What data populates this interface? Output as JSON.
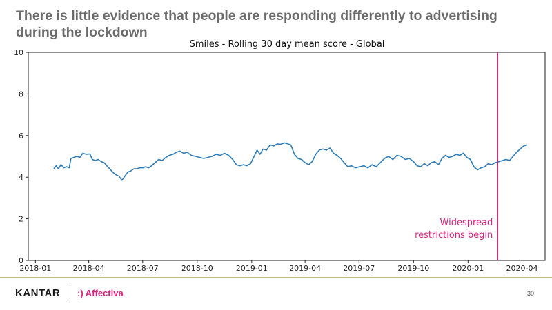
{
  "slide": {
    "headline": "There is little evidence that people are responding differently to advertising during the lockdown",
    "page_number": "30"
  },
  "footer": {
    "brand": "KANTAR",
    "partner": ":) Affectiva",
    "partner_color": "#d6247f"
  },
  "chart_data": {
    "type": "line",
    "title": "Smiles - Rolling 30 day mean score - Global",
    "xlabel": "",
    "ylabel": "",
    "x_range": [
      "2017-12-20",
      "2020-05-10"
    ],
    "ylim": [
      0,
      10
    ],
    "y_ticks": [
      0,
      2,
      4,
      6,
      8,
      10
    ],
    "x_ticks": [
      "2018-01",
      "2018-04",
      "2018-07",
      "2018-10",
      "2019-01",
      "2019-04",
      "2019-07",
      "2019-10",
      "2020-01",
      "2020-04"
    ],
    "grid": false,
    "series": [
      {
        "name": "Smiles",
        "color": "#2d7bb6",
        "points": [
          [
            "2018-02-01",
            4.4
          ],
          [
            "2018-02-05",
            4.55
          ],
          [
            "2018-02-09",
            4.4
          ],
          [
            "2018-02-13",
            4.6
          ],
          [
            "2018-02-18",
            4.45
          ],
          [
            "2018-02-23",
            4.5
          ],
          [
            "2018-02-27",
            4.45
          ],
          [
            "2018-03-02",
            4.9
          ],
          [
            "2018-03-07",
            4.95
          ],
          [
            "2018-03-12",
            5.0
          ],
          [
            "2018-03-17",
            4.95
          ],
          [
            "2018-03-22",
            5.15
          ],
          [
            "2018-03-28",
            5.1
          ],
          [
            "2018-04-03",
            5.12
          ],
          [
            "2018-04-07",
            4.85
          ],
          [
            "2018-04-12",
            4.8
          ],
          [
            "2018-04-17",
            4.85
          ],
          [
            "2018-04-22",
            4.75
          ],
          [
            "2018-04-27",
            4.7
          ],
          [
            "2018-05-03",
            4.5
          ],
          [
            "2018-05-08",
            4.35
          ],
          [
            "2018-05-13",
            4.2
          ],
          [
            "2018-05-18",
            4.1
          ],
          [
            "2018-05-22",
            4.05
          ],
          [
            "2018-05-27",
            3.85
          ],
          [
            "2018-06-01",
            4.05
          ],
          [
            "2018-06-06",
            4.25
          ],
          [
            "2018-06-11",
            4.3
          ],
          [
            "2018-06-16",
            4.4
          ],
          [
            "2018-06-21",
            4.4
          ],
          [
            "2018-06-26",
            4.45
          ],
          [
            "2018-07-01",
            4.45
          ],
          [
            "2018-07-06",
            4.5
          ],
          [
            "2018-07-11",
            4.45
          ],
          [
            "2018-07-16",
            4.55
          ],
          [
            "2018-07-22",
            4.7
          ],
          [
            "2018-07-28",
            4.85
          ],
          [
            "2018-08-03",
            4.8
          ],
          [
            "2018-08-09",
            4.95
          ],
          [
            "2018-08-15",
            5.05
          ],
          [
            "2018-08-21",
            5.1
          ],
          [
            "2018-08-27",
            5.2
          ],
          [
            "2018-09-02",
            5.25
          ],
          [
            "2018-09-08",
            5.15
          ],
          [
            "2018-09-14",
            5.2
          ],
          [
            "2018-09-21",
            5.05
          ],
          [
            "2018-09-28",
            5.0
          ],
          [
            "2018-10-05",
            4.95
          ],
          [
            "2018-10-12",
            4.9
          ],
          [
            "2018-10-19",
            4.95
          ],
          [
            "2018-10-26",
            5.0
          ],
          [
            "2018-11-02",
            5.1
          ],
          [
            "2018-11-09",
            5.05
          ],
          [
            "2018-11-16",
            5.15
          ],
          [
            "2018-11-23",
            5.05
          ],
          [
            "2018-11-30",
            4.85
          ],
          [
            "2018-12-06",
            4.6
          ],
          [
            "2018-12-12",
            4.55
          ],
          [
            "2018-12-18",
            4.6
          ],
          [
            "2018-12-24",
            4.55
          ],
          [
            "2018-12-30",
            4.65
          ],
          [
            "2019-01-05",
            5.0
          ],
          [
            "2019-01-10",
            5.3
          ],
          [
            "2019-01-15",
            5.1
          ],
          [
            "2019-01-20",
            5.35
          ],
          [
            "2019-01-26",
            5.3
          ],
          [
            "2019-02-01",
            5.55
          ],
          [
            "2019-02-07",
            5.5
          ],
          [
            "2019-02-13",
            5.6
          ],
          [
            "2019-02-19",
            5.58
          ],
          [
            "2019-02-25",
            5.65
          ],
          [
            "2019-03-03",
            5.6
          ],
          [
            "2019-03-08",
            5.55
          ],
          [
            "2019-03-14",
            5.1
          ],
          [
            "2019-03-20",
            4.9
          ],
          [
            "2019-03-26",
            4.85
          ],
          [
            "2019-04-01",
            4.7
          ],
          [
            "2019-04-07",
            4.6
          ],
          [
            "2019-04-13",
            4.75
          ],
          [
            "2019-04-19",
            5.1
          ],
          [
            "2019-04-25",
            5.3
          ],
          [
            "2019-05-01",
            5.35
          ],
          [
            "2019-05-07",
            5.3
          ],
          [
            "2019-05-13",
            5.4
          ],
          [
            "2019-05-19",
            5.15
          ],
          [
            "2019-05-25",
            5.05
          ],
          [
            "2019-05-31",
            4.9
          ],
          [
            "2019-06-06",
            4.7
          ],
          [
            "2019-06-12",
            4.5
          ],
          [
            "2019-06-18",
            4.55
          ],
          [
            "2019-06-25",
            4.45
          ],
          [
            "2019-07-02",
            4.5
          ],
          [
            "2019-07-09",
            4.55
          ],
          [
            "2019-07-16",
            4.45
          ],
          [
            "2019-07-23",
            4.6
          ],
          [
            "2019-07-30",
            4.5
          ],
          [
            "2019-08-06",
            4.7
          ],
          [
            "2019-08-13",
            4.9
          ],
          [
            "2019-08-20",
            5.0
          ],
          [
            "2019-08-27",
            4.85
          ],
          [
            "2019-09-03",
            5.05
          ],
          [
            "2019-09-10",
            5.0
          ],
          [
            "2019-09-17",
            4.85
          ],
          [
            "2019-09-24",
            4.9
          ],
          [
            "2019-10-01",
            4.75
          ],
          [
            "2019-10-07",
            4.55
          ],
          [
            "2019-10-13",
            4.5
          ],
          [
            "2019-10-19",
            4.65
          ],
          [
            "2019-10-25",
            4.55
          ],
          [
            "2019-10-31",
            4.7
          ],
          [
            "2019-11-06",
            4.75
          ],
          [
            "2019-11-12",
            4.6
          ],
          [
            "2019-11-18",
            4.9
          ],
          [
            "2019-11-24",
            5.05
          ],
          [
            "2019-11-30",
            4.95
          ],
          [
            "2019-12-06",
            5.0
          ],
          [
            "2019-12-12",
            5.1
          ],
          [
            "2019-12-18",
            5.05
          ],
          [
            "2019-12-24",
            5.15
          ],
          [
            "2019-12-30",
            4.95
          ],
          [
            "2020-01-05",
            4.85
          ],
          [
            "2020-01-11",
            4.5
          ],
          [
            "2020-01-17",
            4.35
          ],
          [
            "2020-01-23",
            4.45
          ],
          [
            "2020-01-29",
            4.5
          ],
          [
            "2020-02-04",
            4.65
          ],
          [
            "2020-02-10",
            4.6
          ],
          [
            "2020-02-16",
            4.7
          ],
          [
            "2020-02-22",
            4.75
          ],
          [
            "2020-02-28",
            4.8
          ],
          [
            "2020-03-05",
            4.85
          ],
          [
            "2020-03-11",
            4.8
          ],
          [
            "2020-03-17",
            5.0
          ],
          [
            "2020-03-23",
            5.2
          ],
          [
            "2020-03-29",
            5.35
          ],
          [
            "2020-04-04",
            5.5
          ],
          [
            "2020-04-10",
            5.55
          ]
        ]
      }
    ],
    "annotations": [
      {
        "type": "vline",
        "x": "2020-02-20",
        "color": "#d6247f",
        "label_lines": [
          "Widespread",
          "restrictions begin"
        ]
      }
    ]
  }
}
